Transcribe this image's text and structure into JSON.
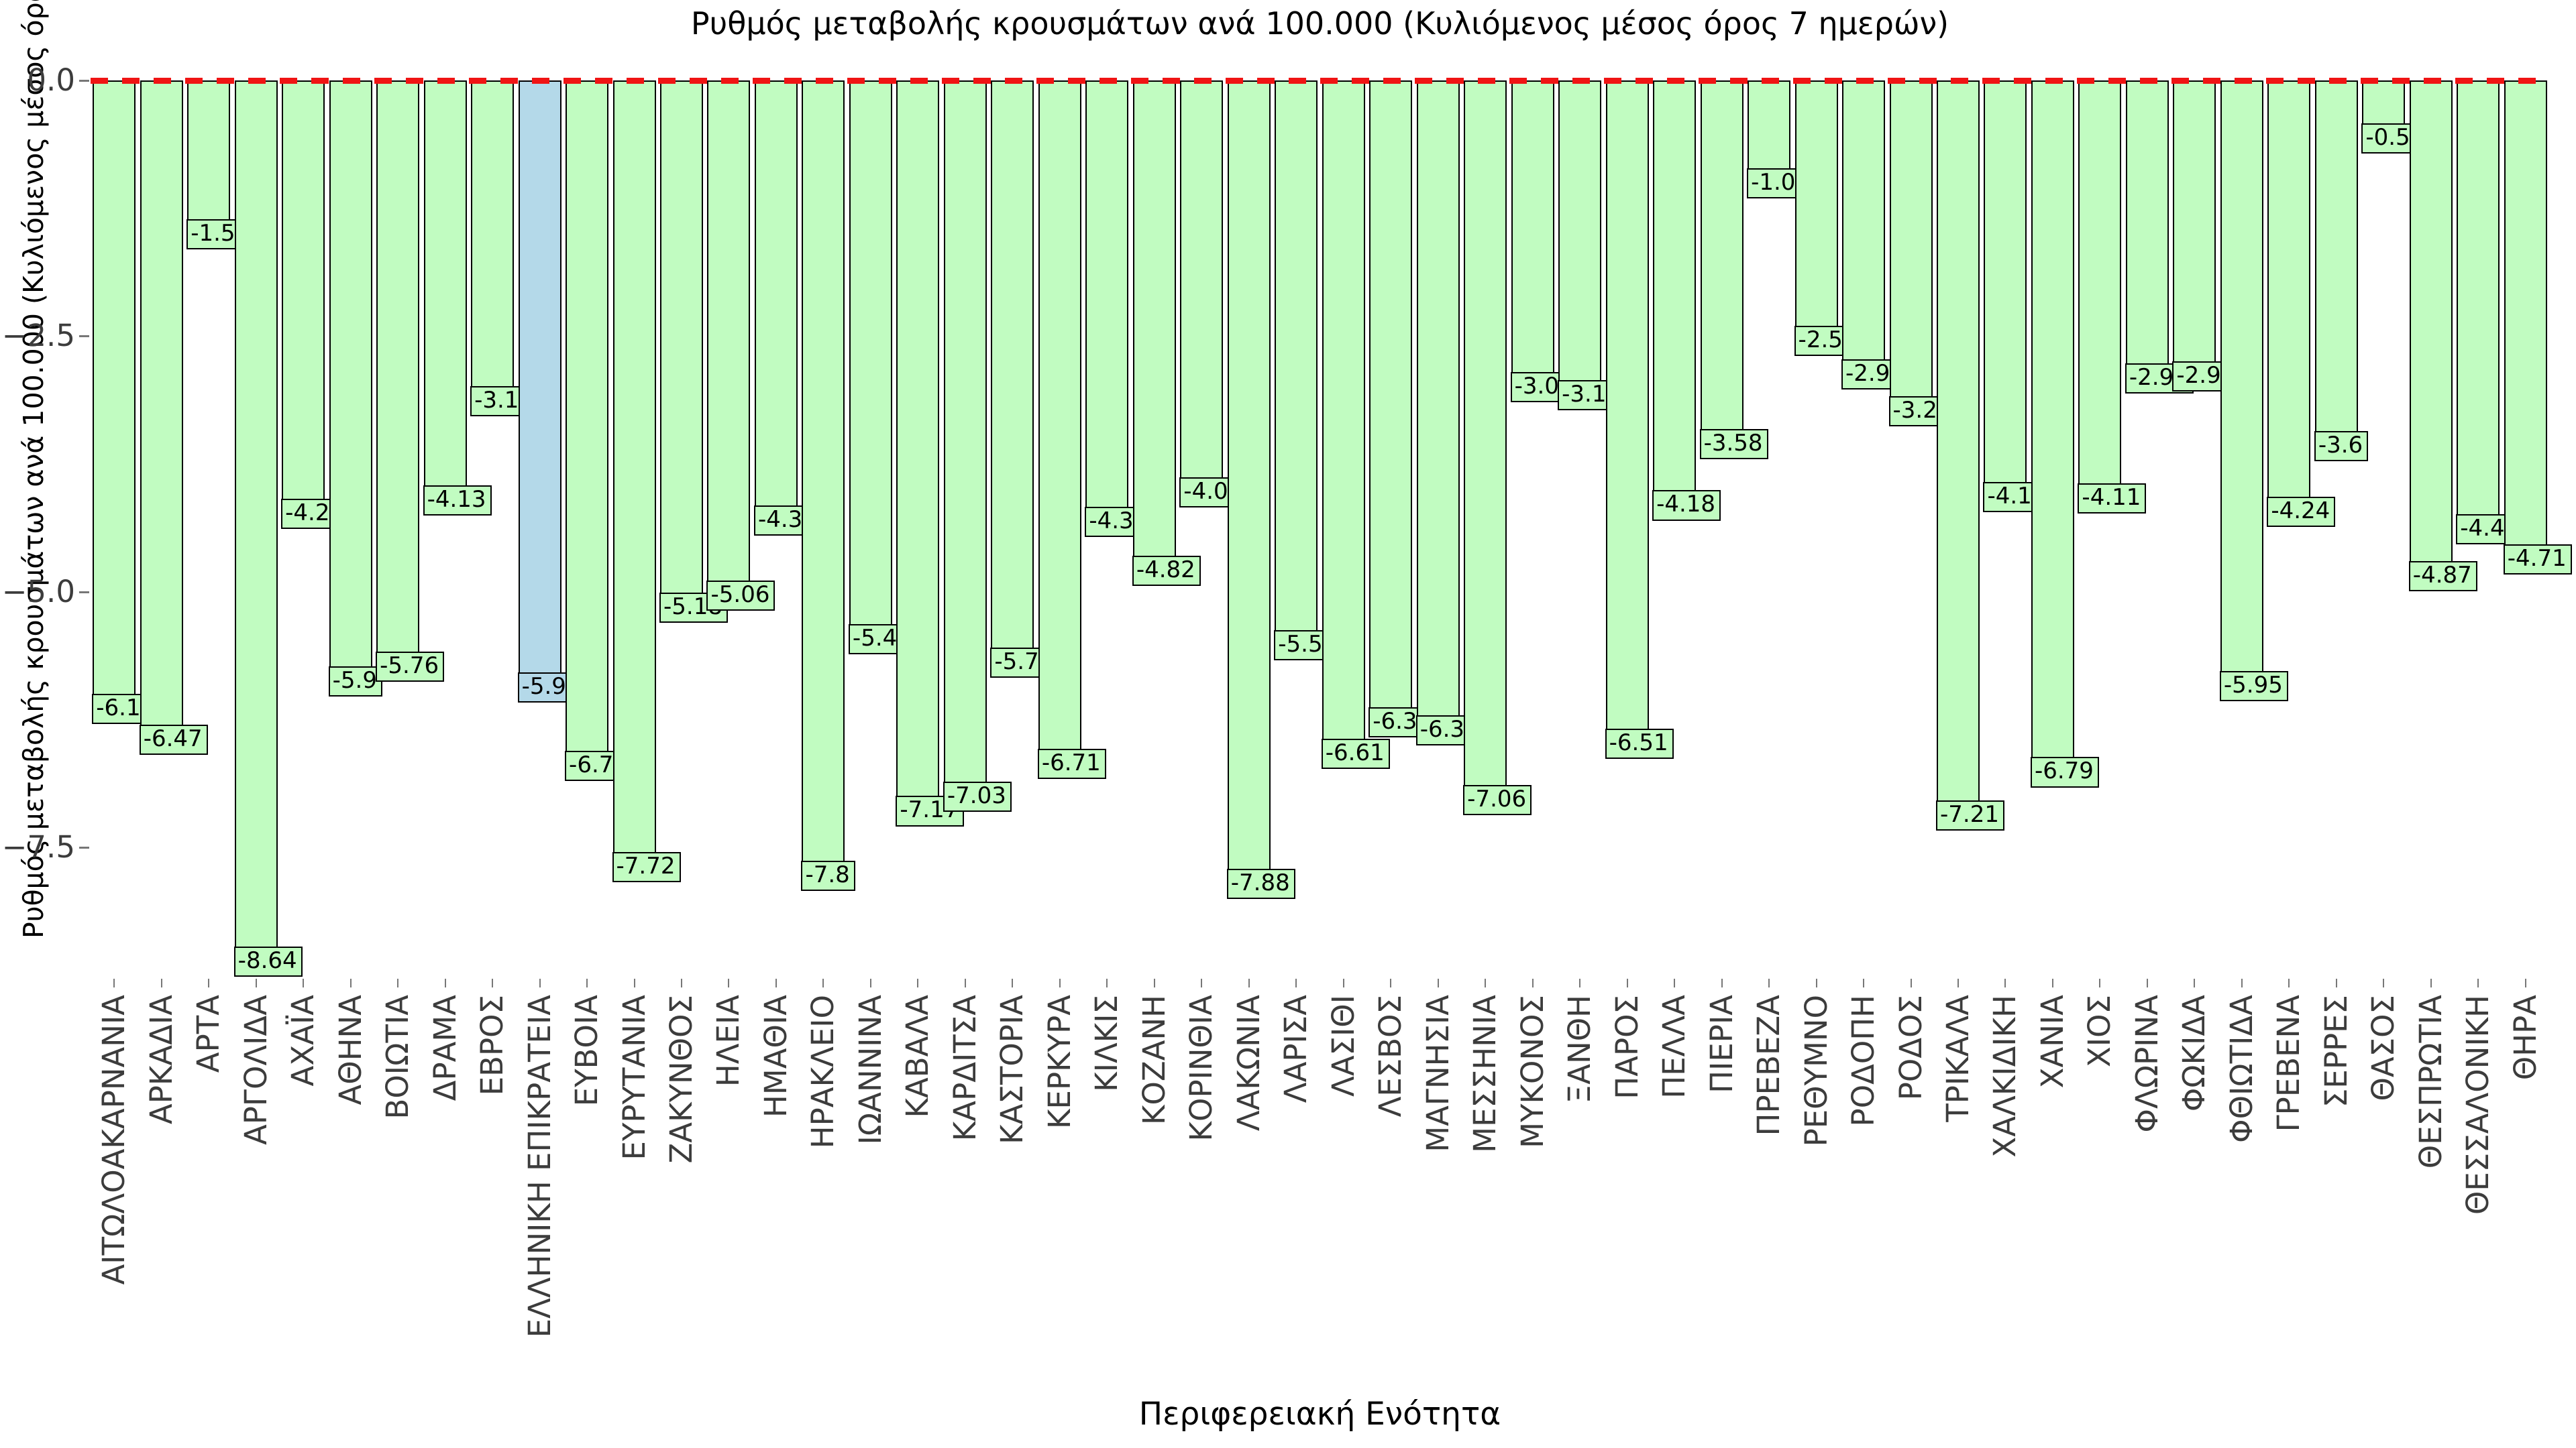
{
  "title": "Ρυθμός μεταβολής κρουσμάτων ανά 100.000 (Κυλιόμενος μέσος όρος 7 ημερών)",
  "x_axis": {
    "label": "Περιφερειακή Ενότητα"
  },
  "y_axis": {
    "label": "Ρυθμός μεταβολής κρουσμάτων ανά 100.000 (Κυλιόμενος μέσος όρος 7 ημερών)",
    "tick_labels": [
      "0.0",
      "−2.5",
      "−5.0",
      "−7.5"
    ],
    "tick_values": [
      0,
      -2.5,
      -5.0,
      -7.5
    ]
  },
  "colors": {
    "bar_fill": "#c1fcc1",
    "highlight_fill": "#b4d9e9",
    "bar_border": "#000000",
    "zero_line": "#f01414",
    "tick_text": "#3c3c3c",
    "tick_mark": "#777777",
    "background": "#ffffff"
  },
  "chart_data": {
    "type": "bar",
    "title": "Ρυθμός μεταβολής κρουσμάτων ανά 100.000 (Κυλιόμενος μέσος όρος 7 ημερών)",
    "xlabel": "Περιφερειακή Ενότητα",
    "ylabel": "Ρυθμός μεταβολής κρουσμάτων ανά 100.000 (Κυλιόμενος μέσος όρος 7 ημερών)",
    "ylim": [
      -9.1,
      0.3
    ],
    "grid": false,
    "legend": false,
    "zero_line": {
      "y": 0,
      "style": "dashed",
      "color": "#f01414"
    },
    "highlight_category": "ΕΛΛΗΝΙΚΗ ΕΠΙΚΡΑΤΕΙΑ",
    "highlight_index": 9,
    "categories": [
      "ΑΙΤΩΛΟΑΚΑΡΝΑΝΙΑ",
      "ΑΡΚΑΔΙΑ",
      "ΑΡΤΑ",
      "ΑΡΓΟΛΙΔΑ",
      "ΑΧΑΪΑ",
      "ΑΘΗΝΑ",
      "ΒΟΙΩΤΙΑ",
      "ΔΡΑΜΑ",
      "ΕΒΡΟΣ",
      "ΕΛΛΗΝΙΚΗ ΕΠΙΚΡΑΤΕΙΑ",
      "ΕΥΒΟΙΑ",
      "ΕΥΡΥΤΑΝΙΑ",
      "ΖΑΚΥΝΘΟΣ",
      "ΗΛΕΙΑ",
      "ΗΜΑΘΙΑ",
      "ΗΡΑΚΛΕΙΟ",
      "ΙΩΑΝΝΙΝΑ",
      "ΚΑΒΑΛΑ",
      "ΚΑΡΔΙΤΣΑ",
      "ΚΑΣΤΟΡΙΑ",
      "ΚΕΡΚΥΡΑ",
      "ΚΙΛΚΙΣ",
      "ΚΟΖΑΝΗ",
      "ΚΟΡΙΝΘΙΑ",
      "ΛΑΚΩΝΙΑ",
      "ΛΑΡΙΣΑ",
      "ΛΑΣΙΘΙ",
      "ΛΕΣΒΟΣ",
      "ΜΑΓΝΗΣΙΑ",
      "ΜΕΣΣΗΝΙΑ",
      "ΜΥΚΟΝΟΣ",
      "ΞΑΝΘΗ",
      "ΠΑΡΟΣ",
      "ΠΕΛΛΑ",
      "ΠΙΕΡΙΑ",
      "ΠΡΕΒΕΖΑ",
      "ΡΕΘΥΜΝΟ",
      "ΡΟΔΟΠΗ",
      "ΡΟΔΟΣ",
      "ΤΡΙΚΑΛΑ",
      "ΧΑΛΚΙΔΙΚΗ",
      "ΧΑΝΙΑ",
      "ΧΙΟΣ",
      "ΦΛΩΡΙΝΑ",
      "ΦΩΚΙΔΑ",
      "ΦΘΙΩΤΙΔΑ",
      "ΓΡΕΒΕΝΑ",
      "ΣΕΡΡΕΣ",
      "ΘΑΣΟΣ",
      "ΘΕΣΠΡΩΤΙΑ",
      "ΘΕΣΣΑΛΟΝΙΚΗ",
      "ΘΗΡΑ"
    ],
    "values": [
      -6.17,
      -6.47,
      -1.53,
      -8.64,
      -4.26,
      -5.9,
      -5.76,
      -4.13,
      -3.16,
      -5.96,
      -6.73,
      -7.72,
      -5.18,
      -5.06,
      -4.33,
      -7.8,
      -5.49,
      -7.17,
      -7.03,
      -5.72,
      -6.71,
      -4.34,
      -4.82,
      -4.05,
      -7.88,
      -5.55,
      -6.61,
      -6.3,
      -6.38,
      -7.06,
      -3.02,
      -3.1,
      -6.51,
      -4.18,
      -3.58,
      -1.03,
      -2.57,
      -2.9,
      -3.26,
      -7.21,
      -4.1,
      -6.79,
      -4.11,
      -2.94,
      -2.92,
      -5.95,
      -4.24,
      -3.6,
      -0.59,
      -4.87,
      -4.41,
      -4.71
    ],
    "value_labels": [
      "-6.17",
      "-6.47",
      "-1.53",
      "-8.64",
      "-4.26",
      "-5.9",
      "-5.76",
      "-4.13",
      "-3.16",
      "-5.96",
      "-6.73",
      "-7.72",
      "-5.18",
      "-5.06",
      "-4.33",
      "-7.8",
      "-5.49",
      "-7.17",
      "-7.03",
      "-5.72",
      "-6.71",
      "-4.34",
      "-4.82",
      "-4.05",
      "-7.88",
      "-5.55",
      "-6.61",
      "-6.3",
      "-6.38",
      "-7.06",
      "-3.02",
      "-3.1",
      "-6.51",
      "-4.18",
      "-3.58",
      "-1.03",
      "-2.57",
      "-2.9",
      "-3.26",
      "-7.21",
      "-4.1",
      "-6.79",
      "-4.11",
      "-2.94",
      "-2.92",
      "-5.95",
      "-4.24",
      "-3.6",
      "-0.59",
      "-4.87",
      "-4.41",
      "-4.71"
    ]
  }
}
